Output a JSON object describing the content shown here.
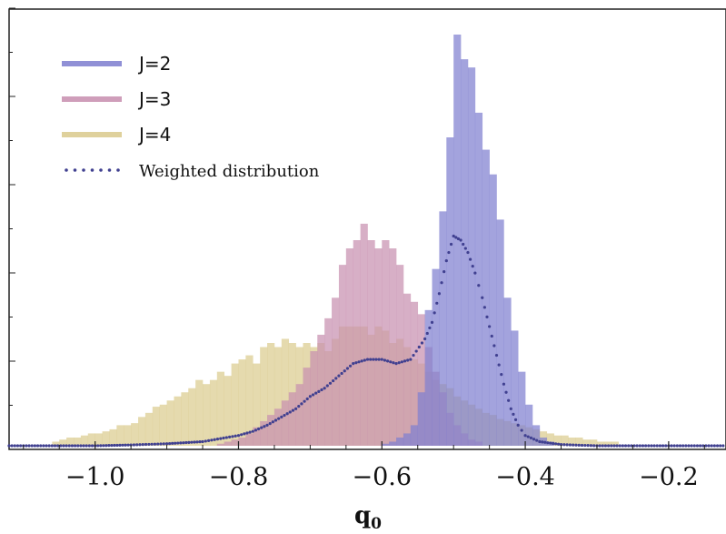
{
  "chart_data": {
    "type": "histogram",
    "xlabel": "q",
    "xlabel_subscript": "0",
    "xlim": [
      -1.12,
      -0.12
    ],
    "ylim": [
      0,
      1.0
    ],
    "x_ticks": [
      -1.0,
      -0.8,
      -0.6,
      -0.4,
      -0.2
    ],
    "x_tick_labels": [
      "−1.0",
      "−0.8",
      "−0.6",
      "−0.4",
      "−0.2"
    ],
    "bin_width": 0.01,
    "legend_position": "top-left",
    "series": [
      {
        "name": "J=2",
        "kind": "histogram",
        "color": "#8080d0",
        "opacity": 0.72,
        "bins": [
          [
            -0.6,
            0.005
          ],
          [
            -0.59,
            0.01
          ],
          [
            -0.58,
            0.02
          ],
          [
            -0.57,
            0.03
          ],
          [
            -0.56,
            0.05
          ],
          [
            -0.55,
            0.13
          ],
          [
            -0.54,
            0.33
          ],
          [
            -0.53,
            0.43
          ],
          [
            -0.52,
            0.57
          ],
          [
            -0.51,
            0.75
          ],
          [
            -0.5,
            1.0
          ],
          [
            -0.49,
            0.94
          ],
          [
            -0.48,
            0.92
          ],
          [
            -0.47,
            0.81
          ],
          [
            -0.46,
            0.72
          ],
          [
            -0.45,
            0.66
          ],
          [
            -0.44,
            0.55
          ],
          [
            -0.43,
            0.36
          ],
          [
            -0.42,
            0.28
          ],
          [
            -0.41,
            0.18
          ],
          [
            -0.4,
            0.1
          ],
          [
            -0.39,
            0.05
          ],
          [
            -0.38,
            0.02
          ],
          [
            -0.37,
            0.01
          ]
        ]
      },
      {
        "name": "J=3",
        "kind": "histogram",
        "color": "#c890b0",
        "opacity": 0.72,
        "bins": [
          [
            -0.83,
            0.005
          ],
          [
            -0.82,
            0.01
          ],
          [
            -0.81,
            0.015
          ],
          [
            -0.8,
            0.02
          ],
          [
            -0.79,
            0.03
          ],
          [
            -0.78,
            0.045
          ],
          [
            -0.77,
            0.06
          ],
          [
            -0.76,
            0.075
          ],
          [
            -0.75,
            0.09
          ],
          [
            -0.74,
            0.11
          ],
          [
            -0.73,
            0.13
          ],
          [
            -0.72,
            0.15
          ],
          [
            -0.71,
            0.19
          ],
          [
            -0.7,
            0.23
          ],
          [
            -0.69,
            0.27
          ],
          [
            -0.68,
            0.31
          ],
          [
            -0.67,
            0.36
          ],
          [
            -0.66,
            0.44
          ],
          [
            -0.65,
            0.48
          ],
          [
            -0.64,
            0.5
          ],
          [
            -0.63,
            0.54
          ],
          [
            -0.62,
            0.5
          ],
          [
            -0.61,
            0.48
          ],
          [
            -0.6,
            0.5
          ],
          [
            -0.59,
            0.48
          ],
          [
            -0.58,
            0.44
          ],
          [
            -0.57,
            0.37
          ],
          [
            -0.56,
            0.35
          ],
          [
            -0.55,
            0.32
          ],
          [
            -0.54,
            0.24
          ],
          [
            -0.53,
            0.18
          ],
          [
            -0.52,
            0.13
          ],
          [
            -0.51,
            0.08
          ],
          [
            -0.5,
            0.05
          ],
          [
            -0.49,
            0.03
          ],
          [
            -0.48,
            0.015
          ],
          [
            -0.47,
            0.01
          ]
        ]
      },
      {
        "name": "J=4",
        "kind": "histogram",
        "color": "#d8c888",
        "opacity": 0.68,
        "bins": [
          [
            -1.06,
            0.01
          ],
          [
            -1.05,
            0.015
          ],
          [
            -1.04,
            0.02
          ],
          [
            -1.03,
            0.02
          ],
          [
            -1.02,
            0.025
          ],
          [
            -1.01,
            0.03
          ],
          [
            -1.0,
            0.03
          ],
          [
            -0.99,
            0.035
          ],
          [
            -0.98,
            0.04
          ],
          [
            -0.97,
            0.05
          ],
          [
            -0.96,
            0.05
          ],
          [
            -0.95,
            0.055
          ],
          [
            -0.94,
            0.07
          ],
          [
            -0.93,
            0.08
          ],
          [
            -0.92,
            0.095
          ],
          [
            -0.91,
            0.1
          ],
          [
            -0.9,
            0.11
          ],
          [
            -0.89,
            0.12
          ],
          [
            -0.88,
            0.13
          ],
          [
            -0.87,
            0.14
          ],
          [
            -0.86,
            0.16
          ],
          [
            -0.85,
            0.15
          ],
          [
            -0.84,
            0.16
          ],
          [
            -0.83,
            0.18
          ],
          [
            -0.82,
            0.17
          ],
          [
            -0.81,
            0.2
          ],
          [
            -0.8,
            0.21
          ],
          [
            -0.79,
            0.22
          ],
          [
            -0.78,
            0.2
          ],
          [
            -0.77,
            0.24
          ],
          [
            -0.76,
            0.25
          ],
          [
            -0.75,
            0.24
          ],
          [
            -0.74,
            0.26
          ],
          [
            -0.73,
            0.25
          ],
          [
            -0.72,
            0.24
          ],
          [
            -0.71,
            0.25
          ],
          [
            -0.7,
            0.24
          ],
          [
            -0.69,
            0.25
          ],
          [
            -0.68,
            0.23
          ],
          [
            -0.67,
            0.26
          ],
          [
            -0.66,
            0.29
          ],
          [
            -0.65,
            0.29
          ],
          [
            -0.64,
            0.29
          ],
          [
            -0.63,
            0.29
          ],
          [
            -0.62,
            0.27
          ],
          [
            -0.61,
            0.29
          ],
          [
            -0.6,
            0.28
          ],
          [
            -0.59,
            0.25
          ],
          [
            -0.58,
            0.26
          ],
          [
            -0.57,
            0.24
          ],
          [
            -0.56,
            0.21
          ],
          [
            -0.55,
            0.2
          ],
          [
            -0.54,
            0.18
          ],
          [
            -0.53,
            0.16
          ],
          [
            -0.52,
            0.15
          ],
          [
            -0.51,
            0.14
          ],
          [
            -0.5,
            0.12
          ],
          [
            -0.49,
            0.11
          ],
          [
            -0.48,
            0.1
          ],
          [
            -0.47,
            0.09
          ],
          [
            -0.46,
            0.08
          ],
          [
            -0.45,
            0.075
          ],
          [
            -0.44,
            0.065
          ],
          [
            -0.43,
            0.06
          ],
          [
            -0.42,
            0.055
          ],
          [
            -0.41,
            0.05
          ],
          [
            -0.4,
            0.045
          ],
          [
            -0.39,
            0.04
          ],
          [
            -0.38,
            0.035
          ],
          [
            -0.37,
            0.03
          ],
          [
            -0.36,
            0.025
          ],
          [
            -0.35,
            0.025
          ],
          [
            -0.34,
            0.02
          ],
          [
            -0.33,
            0.02
          ],
          [
            -0.32,
            0.015
          ],
          [
            -0.31,
            0.015
          ],
          [
            -0.3,
            0.01
          ],
          [
            -0.29,
            0.01
          ],
          [
            -0.28,
            0.01
          ]
        ]
      },
      {
        "name": "Weighted distribution",
        "kind": "dotted-line",
        "color": "#404090",
        "points": [
          [
            -1.12,
            0.0
          ],
          [
            -1.0,
            0.0
          ],
          [
            -0.95,
            0.002
          ],
          [
            -0.9,
            0.005
          ],
          [
            -0.85,
            0.01
          ],
          [
            -0.8,
            0.025
          ],
          [
            -0.78,
            0.035
          ],
          [
            -0.76,
            0.05
          ],
          [
            -0.74,
            0.07
          ],
          [
            -0.72,
            0.09
          ],
          [
            -0.7,
            0.12
          ],
          [
            -0.68,
            0.14
          ],
          [
            -0.66,
            0.17
          ],
          [
            -0.64,
            0.2
          ],
          [
            -0.62,
            0.21
          ],
          [
            -0.6,
            0.21
          ],
          [
            -0.58,
            0.2
          ],
          [
            -0.56,
            0.21
          ],
          [
            -0.54,
            0.26
          ],
          [
            -0.53,
            0.3
          ],
          [
            -0.52,
            0.37
          ],
          [
            -0.51,
            0.45
          ],
          [
            -0.5,
            0.51
          ],
          [
            -0.49,
            0.5
          ],
          [
            -0.48,
            0.47
          ],
          [
            -0.47,
            0.42
          ],
          [
            -0.46,
            0.36
          ],
          [
            -0.45,
            0.29
          ],
          [
            -0.44,
            0.22
          ],
          [
            -0.43,
            0.15
          ],
          [
            -0.42,
            0.09
          ],
          [
            -0.41,
            0.05
          ],
          [
            -0.4,
            0.025
          ],
          [
            -0.38,
            0.01
          ],
          [
            -0.35,
            0.003
          ],
          [
            -0.3,
            0.0
          ],
          [
            -0.12,
            0.0
          ]
        ]
      }
    ]
  }
}
